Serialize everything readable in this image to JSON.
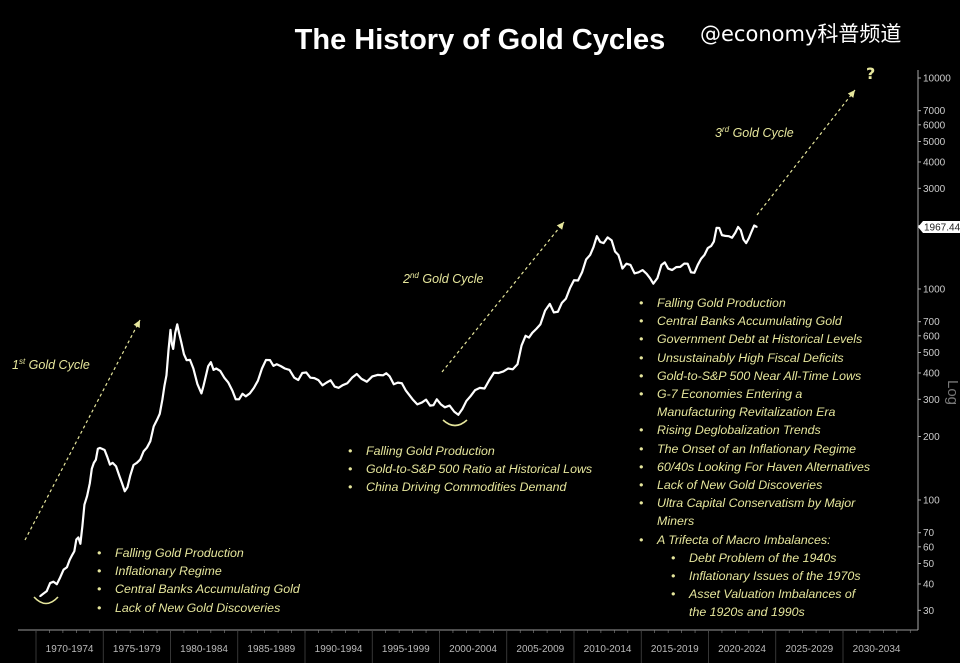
{
  "chart_data": {
    "type": "line",
    "title": "The History of Gold Cycles",
    "y_scale": "log",
    "y_axis_label": "Log",
    "ylim": [
      27,
      11000
    ],
    "xlim": [
      1970,
      2035
    ],
    "y_ticks": [
      30,
      40,
      50,
      60,
      70,
      100,
      200,
      300,
      400,
      500,
      600,
      700,
      1000,
      2000,
      3000,
      4000,
      5000,
      6000,
      7000,
      10000
    ],
    "y_tick_labels": [
      "30",
      "40",
      "50",
      "60",
      "70",
      "100",
      "200",
      "300",
      "400",
      "500",
      "600",
      "700",
      "1000",
      "",
      "3000",
      "4000",
      "5000",
      "6000",
      "7000",
      "10000"
    ],
    "last_value_label": "1967.44",
    "last_value": 1967.44,
    "x_categories": [
      "1970-1974",
      "1975-1979",
      "1980-1984",
      "1985-1989",
      "1990-1994",
      "1995-1999",
      "2000-2004",
      "2005-2009",
      "2010-2014",
      "2015-2019",
      "2020-2024",
      "2025-2029",
      "2030-2034"
    ],
    "series": [
      {
        "color": "#ffffff",
        "x": [
          1970.3,
          1970.8,
          1971.3,
          1971.8,
          1972.3,
          1972.7,
          1973.0,
          1973.3,
          1973.6,
          1974.0,
          1974.3,
          1974.6,
          1974.9,
          1975.3,
          1975.7,
          1976.2,
          1976.6,
          1977.0,
          1977.5,
          1978.0,
          1978.5,
          1979.0,
          1979.4,
          1979.7,
          1980.0,
          1980.2,
          1980.5,
          1980.8,
          1981.2,
          1981.7,
          1982.3,
          1982.6,
          1983.0,
          1983.4,
          1984.0,
          1984.6,
          1985.1,
          1985.6,
          1986.2,
          1986.8,
          1987.4,
          1987.9,
          1988.5,
          1989.2,
          1989.8,
          1990.4,
          1991.0,
          1991.6,
          1992.2,
          1992.8,
          1993.5,
          1994.2,
          1995.0,
          1995.8,
          1996.3,
          1996.9,
          1997.5,
          1998.0,
          1998.7,
          1999.3,
          1999.8,
          2000.4,
          2001.1,
          2001.7,
          2002.3,
          2003.0,
          2003.7,
          2004.4,
          2005.1,
          2005.8,
          2006.4,
          2006.9,
          2007.5,
          2008.2,
          2008.8,
          2009.4,
          2010.0,
          2010.6,
          2011.2,
          2011.7,
          2012.2,
          2012.8,
          2013.3,
          2013.6,
          2014.2,
          2014.8,
          2015.4,
          2015.9,
          2016.5,
          2017.0,
          2017.6,
          2018.2,
          2018.7,
          2019.2,
          2019.7,
          2020.2,
          2020.6,
          2021.0,
          2021.5,
          2022.0,
          2022.4,
          2022.8,
          2023.2,
          2023.6
        ],
        "y": [
          35,
          37,
          41,
          43,
          48,
          55,
          65,
          62,
          95,
          120,
          150,
          175,
          175,
          160,
          150,
          130,
          110,
          130,
          150,
          170,
          190,
          240,
          300,
          390,
          640,
          520,
          680,
          560,
          460,
          420,
          320,
          380,
          450,
          420,
          380,
          330,
          300,
          310,
          340,
          420,
          460,
          440,
          420,
          380,
          400,
          380,
          370,
          360,
          345,
          350,
          380,
          375,
          385,
          390,
          385,
          360,
          330,
          300,
          290,
          280,
          300,
          275,
          262,
          270,
          310,
          340,
          370,
          400,
          420,
          440,
          600,
          620,
          680,
          850,
          780,
          900,
          1100,
          1200,
          1450,
          1780,
          1650,
          1700,
          1450,
          1250,
          1300,
          1200,
          1180,
          1060,
          1300,
          1250,
          1270,
          1320,
          1200,
          1300,
          1450,
          1600,
          1950,
          1800,
          1780,
          1850,
          1900,
          1650,
          1870,
          1967.44
        ]
      }
    ]
  },
  "annotations": {
    "cycle1": {
      "num": "1",
      "sup": "st",
      "label": "Gold Cycle"
    },
    "cycle2": {
      "num": "2",
      "sup": "nd",
      "label": "Gold Cycle"
    },
    "cycle3": {
      "num": "3",
      "sup": "rd",
      "label": "Gold Cycle"
    },
    "question": "?",
    "notes1": [
      "Falling Gold Production",
      "Inflationary Regime",
      "Central Banks Accumulating Gold",
      "Lack of New Gold Discoveries"
    ],
    "notes2": [
      "Falling Gold Production",
      "Gold-to-S&P 500 Ratio at Historical Lows",
      "China Driving Commodities Demand"
    ],
    "notes3": [
      "Falling Gold Production",
      "Central Banks Accumulating Gold",
      "Government Debt at Historical Levels",
      "Unsustainably High Fiscal Deficits",
      "Gold-to-S&P 500 Near All-Time Lows",
      "G-7 Economies Entering a",
      "Manufacturing Revitalization Era",
      "Rising Deglobalization Trends",
      "The Onset of an Inflationary Regime",
      "60/40s Looking For Haven Alternatives",
      "Lack of New Gold Discoveries",
      "Ultra Capital Conservatism by Major",
      "Miners",
      "A Trifecta of Macro Imbalances:"
    ],
    "notes3_sub": [
      "Debt Problem of the 1940s",
      "Inflationary Issues of the 1970s",
      "Asset Valuation Imbalances of",
      "the 1920s and 1990s"
    ]
  },
  "watermark": "@economy科普频道",
  "colors": {
    "background": "#000000",
    "line": "#ffffff",
    "annotation": "#e6e69c"
  }
}
